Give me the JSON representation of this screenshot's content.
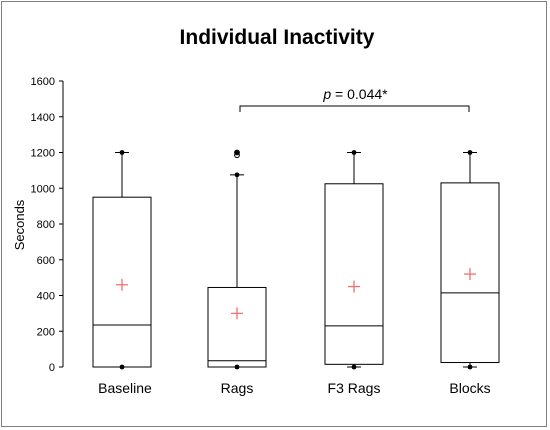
{
  "chart_data": {
    "type": "box",
    "title": "Individual Inactivity",
    "ylabel": "Seconds",
    "xlabel": "",
    "ylim": [
      0,
      1600
    ],
    "yticks": [
      0,
      200,
      400,
      600,
      800,
      1000,
      1200,
      1400,
      1600
    ],
    "grid": false,
    "categories": [
      "Baseline",
      "Rags",
      "F3 Rags",
      "Blocks"
    ],
    "boxes": [
      {
        "category": "Baseline",
        "min": 0,
        "q1": 0,
        "median": 235,
        "q3": 950,
        "max": 1200,
        "mean": 460,
        "outliers": []
      },
      {
        "category": "Rags",
        "min": 0,
        "q1": 0,
        "median": 35,
        "q3": 445,
        "max": 1075,
        "mean": 300,
        "outliers": [
          1185,
          1200
        ]
      },
      {
        "category": "F3 Rags",
        "min": 0,
        "q1": 15,
        "median": 230,
        "q3": 1025,
        "max": 1200,
        "mean": 450,
        "outliers": []
      },
      {
        "category": "Blocks",
        "min": 0,
        "q1": 25,
        "median": 415,
        "q3": 1030,
        "max": 1200,
        "mean": 520,
        "outliers": []
      }
    ],
    "annotation": {
      "from": "Rags",
      "to": "Blocks",
      "y": 1460,
      "label_italic": "p",
      "label_rest": " = 0.044*"
    },
    "colors": {
      "mean_marker": "#f07070",
      "box": "#000000"
    }
  }
}
